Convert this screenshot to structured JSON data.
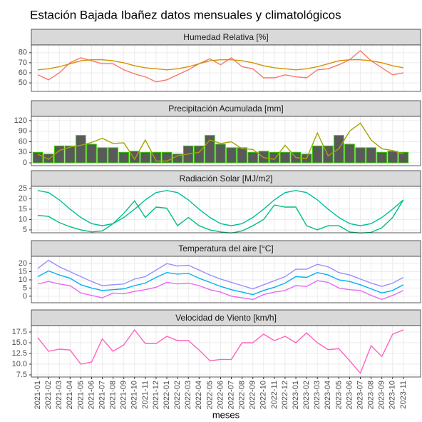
{
  "title": "Estación Bajada Ibañez datos mensuales y climatológicos",
  "x_label": "meses",
  "categories": [
    "2021-01",
    "2021-02",
    "2021-03",
    "2021-04",
    "2021-05",
    "2021-06",
    "2021-07",
    "2021-08",
    "2021-09",
    "2021-10",
    "2021-11",
    "2021-12",
    "2022-01",
    "2022-02",
    "2022-03",
    "2022-04",
    "2022-05",
    "2022-06",
    "2022-07",
    "2022-08",
    "2022-09",
    "2022-10",
    "2022-11",
    "2022-12",
    "2023-01",
    "2023-02",
    "2023-03",
    "2023-04",
    "2023-05",
    "2023-06",
    "2023-07",
    "2023-08",
    "2023-09",
    "2023-10",
    "2023-11"
  ],
  "chart_data": [
    {
      "type": "line",
      "title": "Humedad Relativa [%]",
      "ylim": [
        41.5,
        87.7
      ],
      "yticks": [
        50,
        60,
        70,
        80
      ],
      "grid": true,
      "series": [
        {
          "color": "#F8766D",
          "values": [
            58,
            53,
            60,
            70,
            75,
            72,
            69,
            69,
            63,
            59,
            56,
            51,
            53,
            58,
            63,
            69,
            74,
            68,
            75,
            66,
            64,
            55,
            55,
            58,
            56,
            55,
            63,
            64,
            68,
            73,
            82,
            72,
            65,
            58,
            60
          ]
        },
        {
          "color": "#D39200",
          "values": [
            63,
            64,
            66,
            69,
            72,
            73,
            73,
            72,
            70,
            67,
            65,
            64,
            63,
            64,
            66,
            69,
            72,
            73,
            73,
            72,
            70,
            67,
            65,
            64,
            63,
            64,
            66,
            69,
            72,
            73,
            73,
            72,
            70,
            67,
            65
          ]
        }
      ]
    },
    {
      "type": "bar",
      "title": "Precipitación Acumulada [mm]",
      "ylim": [
        -8,
        132
      ],
      "yticks": [
        0,
        30,
        60,
        90,
        120
      ],
      "grid": true,
      "series": [
        {
          "type": "bar",
          "color": "#595959",
          "edge_color": "#33CC00",
          "values": [
            30,
            25,
            48,
            48,
            78,
            53,
            43,
            43,
            30,
            33,
            30,
            30,
            30,
            25,
            48,
            48,
            78,
            53,
            43,
            43,
            30,
            33,
            30,
            30,
            30,
            25,
            48,
            48,
            78,
            53,
            43,
            43,
            30,
            33,
            30
          ]
        },
        {
          "type": "line",
          "color": "#A3A500",
          "values": [
            25,
            10,
            35,
            45,
            50,
            58,
            70,
            55,
            57,
            10,
            65,
            5,
            5,
            20,
            25,
            30,
            65,
            55,
            60,
            40,
            38,
            15,
            10,
            50,
            15,
            12,
            85,
            20,
            40,
            90,
            113,
            65,
            40,
            35,
            25
          ]
        }
      ]
    },
    {
      "type": "line",
      "title": "Radiación Solar [MJ/m2]",
      "ylim": [
        3.6,
        26
      ],
      "yticks": [
        5,
        10,
        15,
        20,
        25
      ],
      "grid": true,
      "series": [
        {
          "color": "#00BF9A",
          "values": [
            24,
            23,
            19.5,
            15,
            11,
            8,
            7,
            8,
            11,
            15,
            19.5,
            23,
            24,
            23,
            19.5,
            15,
            11,
            8,
            7,
            8,
            11,
            15,
            19.5,
            23,
            24,
            23,
            19.5,
            15,
            11,
            8,
            7,
            8,
            11,
            15,
            19.5
          ]
        },
        {
          "color": "#00BF7D",
          "values": [
            12,
            11.5,
            8.5,
            6.5,
            5,
            4,
            4.5,
            8,
            13,
            19,
            11,
            16,
            15.5,
            7,
            11,
            7,
            5,
            4,
            3.5,
            4.5,
            7,
            10,
            17,
            16,
            16,
            7,
            5,
            7,
            7,
            4,
            3.5,
            3.8,
            6,
            11,
            19.5
          ]
        }
      ]
    },
    {
      "type": "line",
      "title": "Temperatura del aire [°C]",
      "ylim": [
        -4,
        24.4
      ],
      "yticks": [
        0,
        5,
        10,
        15,
        20
      ],
      "grid": true,
      "series": [
        {
          "color": "#9590FF",
          "values": [
            17,
            22,
            18,
            15,
            12,
            9,
            6.5,
            7,
            7.5,
            10.5,
            12,
            16,
            20,
            18.5,
            19,
            16,
            13,
            10.5,
            8.5,
            6.5,
            4.5,
            7,
            9.5,
            12,
            16.5,
            16.5,
            19.5,
            18,
            14.5,
            13,
            10.5,
            8,
            6,
            8,
            11.5
          ]
        },
        {
          "color": "#00B0F6",
          "values": [
            12,
            15.5,
            13,
            11,
            7,
            5,
            3.5,
            4,
            4.5,
            6.5,
            8,
            11.5,
            14.5,
            13.5,
            14,
            11,
            8.5,
            6,
            4,
            2.5,
            1,
            3.5,
            5.5,
            8,
            12,
            11.5,
            14.5,
            13,
            10,
            9,
            7,
            4.5,
            2,
            3.5,
            7
          ]
        },
        {
          "color": "#E76BF3",
          "values": [
            7.5,
            9,
            7.5,
            6.5,
            2,
            0.5,
            -1,
            2,
            1.5,
            3,
            4,
            5.5,
            8.5,
            7.5,
            8,
            6.5,
            4,
            2.5,
            0,
            -1,
            -2,
            1,
            2.5,
            3.5,
            6.5,
            6,
            9.5,
            8.5,
            5,
            4,
            3.5,
            0.5,
            -2,
            0.5,
            3.5
          ]
        }
      ]
    },
    {
      "type": "line",
      "title": "Velocidad de Viento [km/h]",
      "ylim": [
        7,
        19
      ],
      "yticks": [
        {
          "value": 7.5,
          "label": "7.5"
        },
        {
          "value": 10,
          "label": "10.0"
        },
        {
          "value": 12.5,
          "label": "12.5"
        },
        {
          "value": 15,
          "label": "15.0"
        },
        {
          "value": 17.5,
          "label": "17.5"
        }
      ],
      "grid": true,
      "series": [
        {
          "color": "#FF62BC",
          "values": [
            16.2,
            13,
            13.5,
            13.3,
            10,
            10.5,
            15.9,
            13,
            14.5,
            18,
            14.8,
            14.8,
            16.5,
            15.5,
            15.5,
            13.3,
            10.8,
            11.1,
            11.1,
            15,
            15,
            17,
            15.5,
            16.5,
            15,
            17.3,
            15,
            13.4,
            13.6,
            10.8,
            7.9,
            14.3,
            11.8,
            17,
            18
          ]
        }
      ]
    }
  ]
}
